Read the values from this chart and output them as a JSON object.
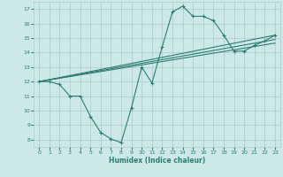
{
  "xlabel": "Humidex (Indice chaleur)",
  "bg_color": "#cce8e8",
  "line_color": "#2e7d72",
  "grid_color": "#aacccc",
  "xlim": [
    -0.5,
    23.5
  ],
  "ylim": [
    7.5,
    17.5
  ],
  "xticks": [
    0,
    1,
    2,
    3,
    4,
    5,
    6,
    7,
    8,
    9,
    10,
    11,
    12,
    13,
    14,
    15,
    16,
    17,
    18,
    19,
    20,
    21,
    22,
    23
  ],
  "yticks": [
    8,
    9,
    10,
    11,
    12,
    13,
    14,
    15,
    16,
    17
  ],
  "line1_x": [
    0,
    1,
    2,
    3,
    4,
    5,
    6,
    7,
    8,
    9,
    10,
    11,
    12,
    13,
    14,
    15,
    16,
    17,
    18,
    19,
    20,
    21,
    22,
    23
  ],
  "line1_y": [
    12.0,
    12.0,
    11.8,
    11.0,
    11.0,
    9.6,
    8.5,
    8.05,
    7.8,
    10.2,
    13.0,
    11.9,
    14.4,
    16.8,
    17.2,
    16.5,
    16.5,
    16.2,
    15.2,
    14.1,
    14.1,
    14.5,
    14.8,
    15.2
  ],
  "line2_x": [
    0,
    23
  ],
  "line2_y": [
    12.0,
    15.2
  ],
  "line3_x": [
    0,
    23
  ],
  "line3_y": [
    12.0,
    15.1
  ],
  "line4_x": [
    0,
    23
  ],
  "line4_y": [
    12.0,
    15.15
  ]
}
